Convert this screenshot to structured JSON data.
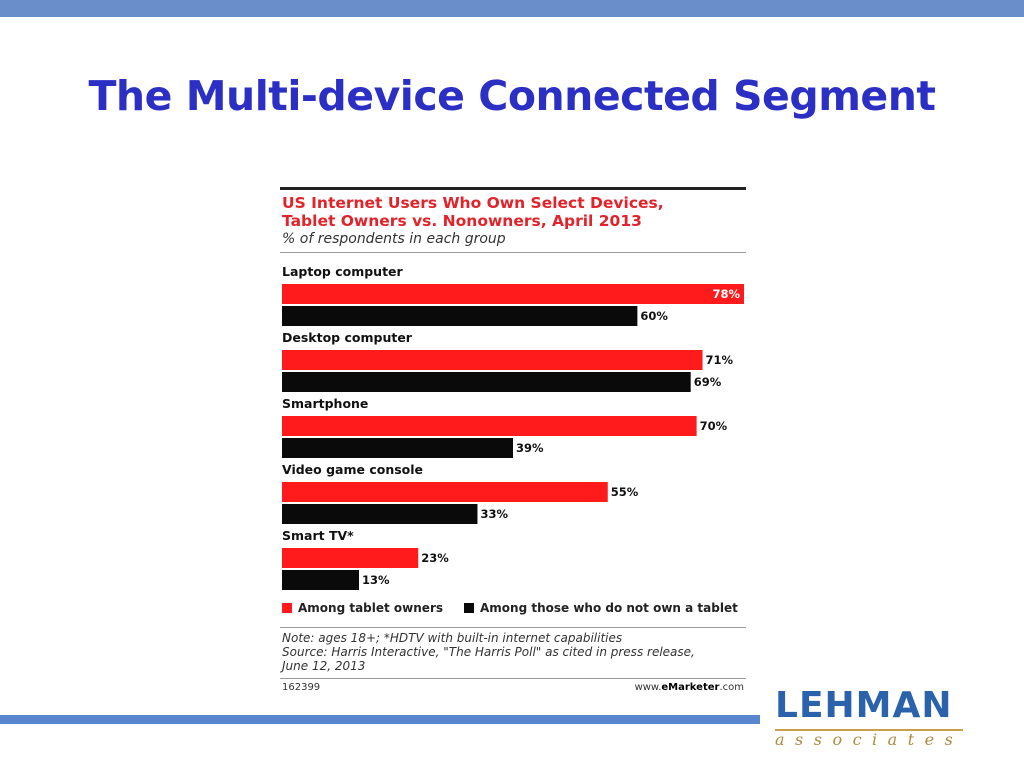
{
  "slide": {
    "title": "The Multi-device Connected Segment"
  },
  "chart_data": {
    "type": "bar",
    "orientation": "horizontal",
    "title": "US Internet Users Who Own Select Devices,\nTablet Owners vs. Nonowners, April 2013",
    "subtitle": "% of respondents in each group",
    "categories": [
      "Laptop computer",
      "Desktop computer",
      "Smartphone",
      "Video game console",
      "Smart TV*"
    ],
    "series": [
      {
        "name": "Among tablet owners",
        "color": "#ff1b1b",
        "values": [
          78,
          71,
          70,
          55,
          23
        ]
      },
      {
        "name": "Among those who do not own a tablet",
        "color": "#0a0a0a",
        "values": [
          60,
          69,
          39,
          33,
          13
        ]
      }
    ],
    "value_suffix": "%",
    "xlim": [
      0,
      78
    ],
    "grid": false,
    "legend": "bottom",
    "note": "Note: ages 18+; *HDTV with built-in internet capabilities\nSource: Harris Interactive, \"The Harris Poll\" as cited in press release,\nJune 12, 2013",
    "chart_id": "162399",
    "source_prefix": "www.",
    "source_brand": "eMarketer",
    "source_suffix": ".com"
  },
  "logo": {
    "name": "LEHMAN",
    "tagline": "associates"
  }
}
